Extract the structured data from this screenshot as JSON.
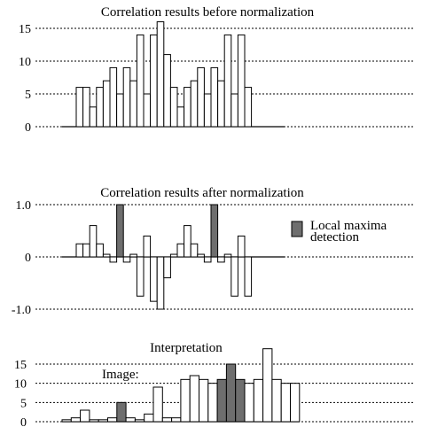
{
  "chart_data": [
    {
      "type": "bar",
      "title": "Correlation results before normalization",
      "ylim": [
        0,
        15
      ],
      "yticks": [
        "15",
        "10",
        "5",
        "0"
      ],
      "ytick_values": [
        15,
        10,
        5,
        0
      ],
      "grid": true,
      "values": [
        6,
        6,
        3,
        6,
        7,
        9,
        5,
        9,
        7,
        14,
        5,
        14,
        16,
        11,
        6,
        3,
        6,
        7,
        9,
        5,
        9,
        7,
        14,
        5,
        14,
        6
      ],
      "highlight": [],
      "colors": {
        "fill": "#ffffff",
        "highlight": "#6e6e6e"
      }
    },
    {
      "type": "bar",
      "title": "Correlation results after normalization",
      "ylim": [
        -1.0,
        1.0
      ],
      "yticks": [
        "1.0",
        "0",
        "-1.0"
      ],
      "ytick_values": [
        1.0,
        0,
        -1.0
      ],
      "grid": true,
      "values": [
        0.25,
        0.25,
        0.6,
        0.25,
        0.05,
        -0.1,
        1.0,
        -0.1,
        0.05,
        -0.75,
        0.4,
        -0.85,
        -1.0,
        -0.4,
        0.05,
        0.25,
        0.6,
        0.25,
        0.05,
        -0.1,
        1.0,
        -0.1,
        0.05,
        -0.75,
        0.4,
        -0.75
      ],
      "highlight": [
        6,
        20
      ],
      "legend": {
        "label_line1": "Local maxima",
        "label_line2": "detection"
      },
      "colors": {
        "fill": "#ffffff",
        "highlight": "#6e6e6e"
      }
    },
    {
      "type": "bar",
      "title": "Interpretation",
      "label": "Image:",
      "ylim": [
        0,
        20
      ],
      "yticks": [
        "15",
        "10",
        "5",
        "0"
      ],
      "ytick_values": [
        15,
        10,
        5,
        0
      ],
      "grid": true,
      "values": [
        0.5,
        1,
        3,
        0.5,
        0.5,
        1,
        5,
        1,
        0.5,
        2,
        9,
        1,
        1,
        11,
        12,
        11,
        10,
        11,
        15,
        11,
        10,
        11,
        19,
        11,
        10,
        10
      ],
      "highlight": [
        6,
        17,
        18,
        19
      ],
      "colors": {
        "fill": "#ffffff",
        "highlight": "#6e6e6e"
      }
    }
  ]
}
